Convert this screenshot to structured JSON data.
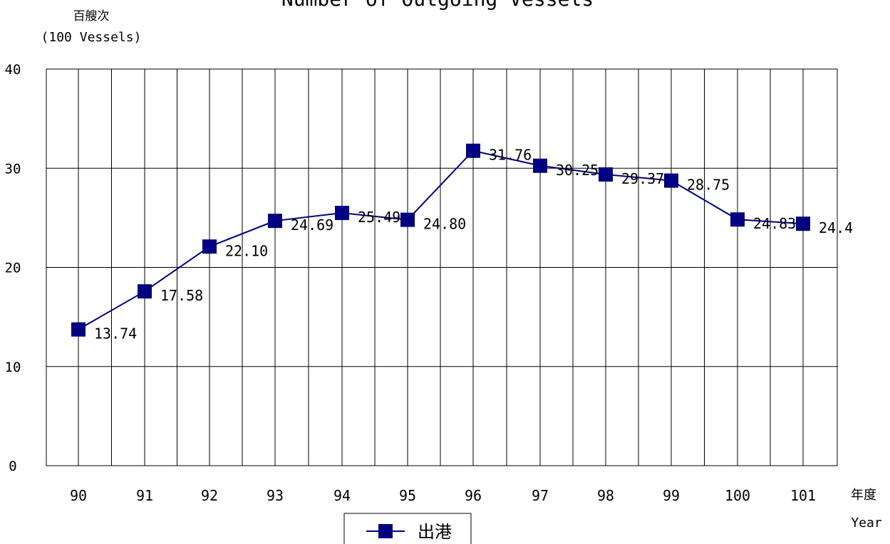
{
  "chart_data": {
    "type": "line",
    "title": "Number of Outgoing Vessels",
    "ylabel_zh": "百艘次",
    "ylabel_en": "(100 Vessels)",
    "xlabel_zh": "年度",
    "xlabel_en": "Year",
    "categories": [
      "90",
      "91",
      "92",
      "93",
      "94",
      "95",
      "96",
      "97",
      "98",
      "99",
      "100",
      "101"
    ],
    "yticks": [
      "0",
      "10",
      "20",
      "30",
      "40"
    ],
    "ylim": [
      0,
      40
    ],
    "grid": true,
    "legend_position": "bottom-center",
    "series": [
      {
        "name": "出港",
        "color": "#000080",
        "marker": "square",
        "values": [
          13.74,
          17.58,
          22.1,
          24.69,
          25.49,
          24.8,
          31.76,
          30.25,
          29.37,
          28.75,
          24.83,
          24.4
        ],
        "labels": [
          "13.74",
          "17.58",
          "22.10",
          "24.69",
          "25.49",
          "24.80",
          "31.76",
          "30.25",
          "29.37",
          "28.75",
          "24.83",
          "24.4"
        ]
      }
    ]
  }
}
